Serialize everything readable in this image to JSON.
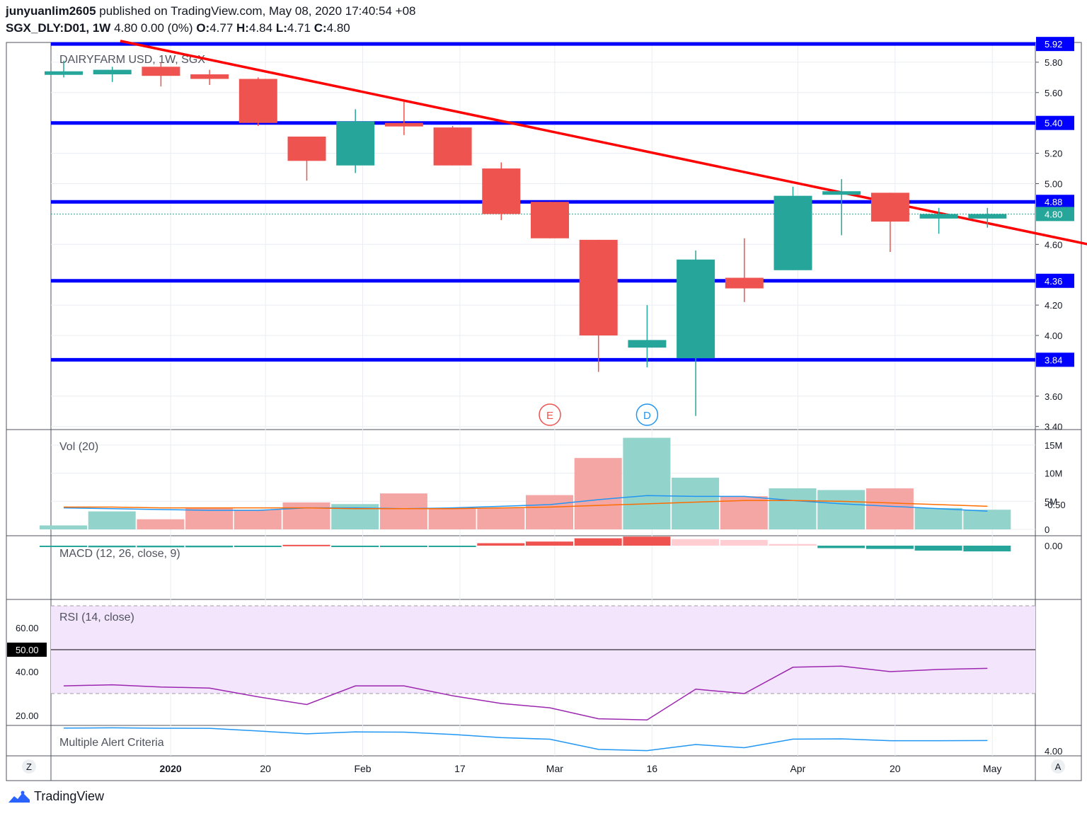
{
  "header": {
    "author": "junyuanlim2605",
    "published": "published on TradingView.com, May 08, 2020 17:40:54 +08",
    "symbol": "SGX_DLY:D01, 1W",
    "last": "4.80 0.00 (0%)",
    "o_label": "O:",
    "o": "4.77",
    "h_label": "H:",
    "h": "4.84",
    "l_label": "L:",
    "l": "4.71",
    "c_label": "C:",
    "c": "4.80"
  },
  "footer": {
    "brand": "TradingView"
  },
  "colors": {
    "up": "#26a69a",
    "down": "#ef5350",
    "up_vol": "#92d3cb",
    "down_vol": "#f4a6a4",
    "level": "#0000ff",
    "trend": "#ff0000",
    "macd": "#2196f3",
    "signal": "#ff6d00",
    "rsi": "#9c27b0",
    "alert": "#2196f3"
  },
  "chart_data": [
    {
      "type": "candlestick",
      "title": "DAIRYFARM USD, 1W, SGX",
      "ylim": [
        3.38,
        5.93
      ],
      "y_ticks": [
        "5.80",
        "5.60",
        "5.20",
        "5.00",
        "4.60",
        "4.20",
        "4.00",
        "3.60",
        "3.40"
      ],
      "x_ticks": [
        "2020",
        "20",
        "Feb",
        "17",
        "Mar",
        "16",
        "Apr",
        "20",
        "May"
      ],
      "price_tags": [
        "5.92",
        "5.40",
        "4.88",
        "4.80",
        "4.36",
        "3.84"
      ],
      "last_price": 4.8,
      "horizontal_levels": [
        5.92,
        5.4,
        4.88,
        4.36,
        3.84
      ],
      "trendline": {
        "from": [
          0,
          5.94
        ],
        "to": [
          20.5,
          4.58
        ]
      },
      "events": [
        "E",
        "D"
      ],
      "candles": [
        {
          "o": 5.73,
          "h": 5.81,
          "l": 5.7,
          "c": 5.74
        },
        {
          "o": 5.72,
          "h": 5.77,
          "l": 5.67,
          "c": 5.75
        },
        {
          "o": 5.77,
          "h": 5.8,
          "l": 5.64,
          "c": 5.71
        },
        {
          "o": 5.72,
          "h": 5.75,
          "l": 5.65,
          "c": 5.69
        },
        {
          "o": 5.69,
          "h": 5.7,
          "l": 5.38,
          "c": 5.4
        },
        {
          "o": 5.31,
          "h": 5.31,
          "l": 5.02,
          "c": 5.15
        },
        {
          "o": 5.12,
          "h": 5.49,
          "l": 5.07,
          "c": 5.41
        },
        {
          "o": 5.4,
          "h": 5.54,
          "l": 5.32,
          "c": 5.39
        },
        {
          "o": 5.37,
          "h": 5.38,
          "l": 5.12,
          "c": 5.12
        },
        {
          "o": 5.1,
          "h": 5.14,
          "l": 4.76,
          "c": 4.8
        },
        {
          "o": 4.88,
          "h": 4.88,
          "l": 4.64,
          "c": 4.64
        },
        {
          "o": 4.63,
          "h": 4.63,
          "l": 3.76,
          "c": 4.0
        },
        {
          "o": 3.92,
          "h": 4.2,
          "l": 3.79,
          "c": 3.97
        },
        {
          "o": 3.85,
          "h": 4.56,
          "l": 3.47,
          "c": 4.5
        },
        {
          "o": 4.38,
          "h": 4.64,
          "l": 4.22,
          "c": 4.31
        },
        {
          "o": 4.43,
          "h": 4.98,
          "l": 4.43,
          "c": 4.92
        },
        {
          "o": 4.95,
          "h": 5.03,
          "l": 4.66,
          "c": 4.95
        },
        {
          "o": 4.94,
          "h": 4.94,
          "l": 4.55,
          "c": 4.75
        },
        {
          "o": 4.77,
          "h": 4.84,
          "l": 4.67,
          "c": 4.8
        },
        {
          "o": 4.77,
          "h": 4.84,
          "l": 4.71,
          "c": 4.8
        }
      ]
    },
    {
      "type": "bar",
      "title": "Vol (20)",
      "ylim": [
        0,
        16500000
      ],
      "y_ticks": [
        "15M",
        "10M",
        "5M",
        "0"
      ],
      "values": [
        700000,
        3200000,
        1800000,
        3800000,
        3500000,
        4800000,
        4500000,
        6400000,
        3800000,
        3800000,
        6100000,
        12700000,
        16300000,
        9200000,
        5900000,
        7300000,
        7000000,
        7300000,
        3800000,
        3500000
      ],
      "direction": [
        "up",
        "up",
        "down",
        "down",
        "down",
        "down",
        "up",
        "down",
        "down",
        "down",
        "down",
        "down",
        "up",
        "up",
        "down",
        "up",
        "up",
        "down",
        "up",
        "up"
      ]
    },
    {
      "type": "line",
      "title": "MACD (12, 26, close, 9)",
      "ylim": [
        -0.65,
        0.05
      ],
      "y_ticks": [
        "0.00",
        "-0.50"
      ],
      "histogram": [
        0.01,
        0.02,
        0.02,
        0.02,
        0.0,
        -0.01,
        0.0,
        0.01,
        0.0,
        -0.03,
        -0.05,
        -0.09,
        -0.11,
        -0.08,
        -0.07,
        -0.02,
        0.03,
        0.04,
        0.06,
        0.07
      ],
      "series": [
        {
          "values": [
            -0.46,
            -0.45,
            -0.44,
            -0.43,
            -0.43,
            -0.46,
            -0.46,
            -0.45,
            -0.46,
            -0.48,
            -0.5,
            -0.56,
            -0.61,
            -0.6,
            -0.6,
            -0.55,
            -0.51,
            -0.48,
            -0.45,
            -0.42
          ]
        },
        {
          "values": [
            -0.47,
            -0.47,
            -0.46,
            -0.46,
            -0.46,
            -0.46,
            -0.45,
            -0.45,
            -0.45,
            -0.46,
            -0.47,
            -0.49,
            -0.51,
            -0.53,
            -0.55,
            -0.55,
            -0.54,
            -0.52,
            -0.5,
            -0.48
          ]
        }
      ]
    },
    {
      "type": "line",
      "title": "RSI (14, close)",
      "ylim": [
        16,
        73
      ],
      "y_ticks": [
        "60.00",
        "50.00",
        "40.00",
        "20.00"
      ],
      "band": [
        30,
        70
      ],
      "mid": 50,
      "values": [
        33.5,
        34,
        33,
        32.5,
        28.5,
        25,
        33.5,
        33.5,
        29,
        25.5,
        23.5,
        18.5,
        18,
        32,
        30,
        42,
        42.5,
        40,
        41,
        41.5
      ]
    },
    {
      "type": "line",
      "title": "Multiple Alert Criteria",
      "ylim": [
        3.95,
        5.9
      ],
      "y_ticks": [
        "4.00"
      ],
      "values": [
        5.8,
        5.82,
        5.79,
        5.78,
        5.57,
        5.35,
        5.5,
        5.48,
        5.3,
        5.05,
        4.92,
        4.12,
        4.02,
        4.5,
        4.25,
        4.93,
        4.95,
        4.8,
        4.8,
        4.82
      ]
    }
  ],
  "corner_buttons": {
    "left": "Z",
    "right": "A"
  }
}
